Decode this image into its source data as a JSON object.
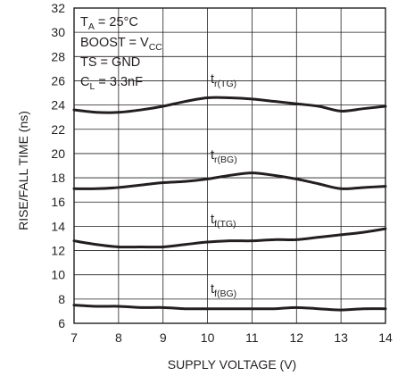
{
  "chart_data": {
    "type": "line",
    "xlabel": "SUPPLY VOLTAGE (V)",
    "ylabel": "RISE/FALL TIME (ns)",
    "xlim": [
      7,
      14
    ],
    "ylim": [
      6,
      32
    ],
    "x_ticks": [
      "7",
      "8",
      "9",
      "10",
      "11",
      "12",
      "13",
      "14"
    ],
    "y_ticks": [
      "6",
      "8",
      "10",
      "12",
      "14",
      "16",
      "18",
      "20",
      "22",
      "24",
      "26",
      "28",
      "30",
      "32"
    ],
    "grid": true,
    "conditions": {
      "line1": {
        "main": "T",
        "sub": "A",
        "rest": " = 25°C"
      },
      "line2": {
        "main": "BOOST = V",
        "sub": "CC",
        "rest": ""
      },
      "line3": {
        "main": "TS = GND",
        "sub": "",
        "rest": ""
      },
      "line4": {
        "main": "C",
        "sub": "L",
        "rest": " = 3.3nF"
      }
    },
    "series": [
      {
        "name": "tr(TG)",
        "label_main": "t",
        "label_sub": "r(TG)",
        "x": [
          7,
          7.5,
          8,
          8.5,
          9,
          9.5,
          10,
          10.5,
          11,
          11.5,
          12,
          12.5,
          13,
          13.5,
          14
        ],
        "y": [
          23.6,
          23.4,
          23.4,
          23.6,
          23.9,
          24.3,
          24.6,
          24.6,
          24.5,
          24.3,
          24.1,
          23.9,
          23.5,
          23.7,
          23.9
        ]
      },
      {
        "name": "tr(BG)",
        "label_main": "t",
        "label_sub": "r(BG)",
        "x": [
          7,
          7.5,
          8,
          8.5,
          9,
          9.5,
          10,
          10.5,
          11,
          11.5,
          12,
          12.5,
          13,
          13.5,
          14
        ],
        "y": [
          17.1,
          17.1,
          17.2,
          17.4,
          17.6,
          17.7,
          17.9,
          18.2,
          18.4,
          18.2,
          17.9,
          17.5,
          17.1,
          17.2,
          17.3
        ]
      },
      {
        "name": "tf(TG)",
        "label_main": "t",
        "label_sub": "f(TG)",
        "x": [
          7,
          7.5,
          8,
          8.5,
          9,
          9.5,
          10,
          10.5,
          11,
          11.5,
          12,
          12.5,
          13,
          13.5,
          14
        ],
        "y": [
          12.8,
          12.5,
          12.3,
          12.3,
          12.3,
          12.5,
          12.7,
          12.8,
          12.8,
          12.9,
          12.9,
          13.1,
          13.3,
          13.5,
          13.8
        ]
      },
      {
        "name": "tf(BG)",
        "label_main": "t",
        "label_sub": "f(BG)",
        "x": [
          7,
          7.5,
          8,
          8.5,
          9,
          9.5,
          10,
          10.5,
          11,
          11.5,
          12,
          12.5,
          13,
          13.5,
          14
        ],
        "y": [
          7.5,
          7.4,
          7.4,
          7.3,
          7.3,
          7.2,
          7.2,
          7.2,
          7.2,
          7.2,
          7.3,
          7.2,
          7.1,
          7.2,
          7.2
        ]
      }
    ],
    "colors": {
      "ink": "#231f20",
      "background": "#ffffff"
    }
  }
}
